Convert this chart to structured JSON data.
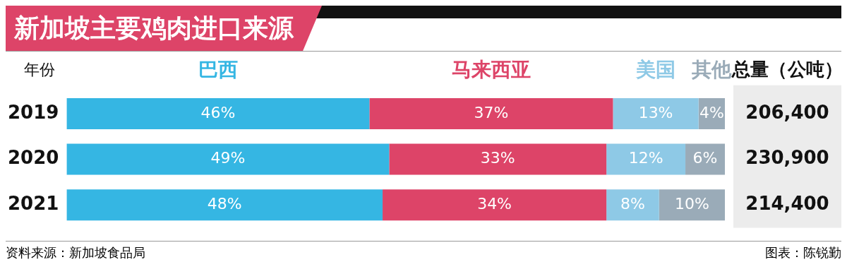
{
  "chart_data": {
    "type": "bar",
    "orientation": "horizontal",
    "stacked": true,
    "title": "新加坡主要鸡肉进口来源",
    "ylabel": "年份",
    "categories": [
      "2019",
      "2020",
      "2021"
    ],
    "series": [
      {
        "name": "巴西",
        "color": "#35b6e3",
        "values": [
          46,
          49,
          48
        ],
        "value_labels": [
          "46%",
          "49%",
          "48%"
        ]
      },
      {
        "name": "马来西亚",
        "color": "#dd4468",
        "values": [
          37,
          33,
          34
        ],
        "value_labels": [
          "37%",
          "33%",
          "34%"
        ]
      },
      {
        "name": "美国",
        "color": "#8ec9e6",
        "values": [
          13,
          12,
          8
        ],
        "value_labels": [
          "13%",
          "12%",
          "8%"
        ]
      },
      {
        "name": "其他",
        "color": "#9aabb8",
        "values": [
          4,
          6,
          10
        ],
        "value_labels": [
          "4%",
          "6%",
          "10%"
        ]
      }
    ],
    "legend": "top",
    "tick_labels": "y",
    "grid": false,
    "annotations": [
      "资料来源：新加坡食品局",
      "图表：陈锐勤",
      "总量（公吨）",
      "206,400",
      "230,900",
      "214,400"
    ]
  }
}
